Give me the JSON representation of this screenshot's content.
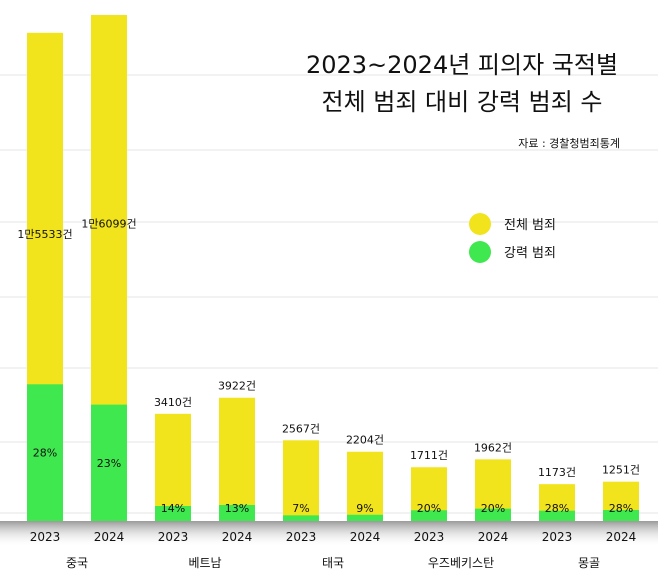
{
  "chart_data": {
    "type": "bar",
    "stacked": true,
    "title_lines": [
      "2023~2024년 피의자 국적별",
      "전체 범죄 대비 강력 범죄 수"
    ],
    "source": "자료 : 경찰청범죄통계",
    "legend": {
      "position": "right",
      "entries": [
        {
          "label": "전체 범죄",
          "color": "#f2e41c"
        },
        {
          "label": "강력 범죄",
          "color": "#3ee84e"
        }
      ]
    },
    "colors": {
      "total": "#f2e41c",
      "violent": "#3ee84e",
      "grid": "#e6e6e6"
    },
    "grid": true,
    "ylim": [
      0,
      16099
    ],
    "groups": [
      {
        "name": "중국",
        "bars": [
          {
            "year": "2023",
            "total": 15533,
            "total_label": "1만5533건",
            "violent_pct": 28,
            "pct_label": "28%"
          },
          {
            "year": "2024",
            "total": 16099,
            "total_label": "1만6099건",
            "violent_pct": 23,
            "pct_label": "23%"
          }
        ]
      },
      {
        "name": "베트남",
        "bars": [
          {
            "year": "2023",
            "total": 3410,
            "total_label": "3410건",
            "violent_pct": 14,
            "pct_label": "14%"
          },
          {
            "year": "2024",
            "total": 3922,
            "total_label": "3922건",
            "violent_pct": 13,
            "pct_label": "13%"
          }
        ]
      },
      {
        "name": "태국",
        "bars": [
          {
            "year": "2023",
            "total": 2567,
            "total_label": "2567건",
            "violent_pct": 7,
            "pct_label": "7%"
          },
          {
            "year": "2024",
            "total": 2204,
            "total_label": "2204건",
            "violent_pct": 9,
            "pct_label": "9%"
          }
        ]
      },
      {
        "name": "우즈베키스탄",
        "bars": [
          {
            "year": "2023",
            "total": 1711,
            "total_label": "1711건",
            "violent_pct": 20,
            "pct_label": "20%"
          },
          {
            "year": "2024",
            "total": 1962,
            "total_label": "1962건",
            "violent_pct": 20,
            "pct_label": "20%"
          }
        ]
      },
      {
        "name": "몽골",
        "bars": [
          {
            "year": "2023",
            "total": 1173,
            "total_label": "1173건",
            "violent_pct": 28,
            "pct_label": "28%"
          },
          {
            "year": "2024",
            "total": 1251,
            "total_label": "1251건",
            "violent_pct": 28,
            "pct_label": "28%"
          }
        ]
      }
    ]
  }
}
